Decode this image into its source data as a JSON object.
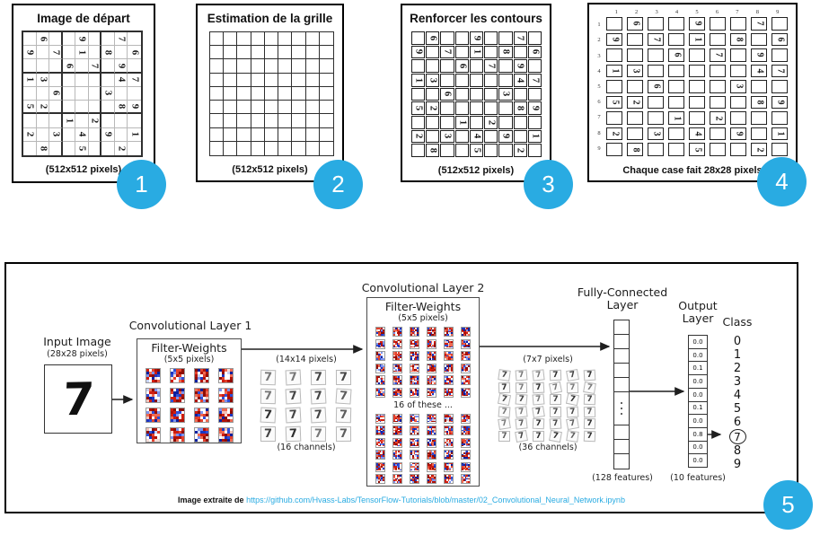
{
  "colors": {
    "accent": "#29abe2",
    "link": "#29abe2"
  },
  "badges": [
    "1",
    "2",
    "3",
    "4",
    "5"
  ],
  "panel1": {
    "title": "Image de départ",
    "caption": "(512x512 pixels)"
  },
  "panel2": {
    "title": "Estimation de la grille",
    "caption": "(512x512 pixels)"
  },
  "panel3": {
    "title": "Renforcer les contours",
    "caption": "(512x512 pixels)"
  },
  "panel4": {
    "caption": "Chaque case fait 28x28 pixels",
    "col_labels": [
      "1",
      "2",
      "3",
      "4",
      "5",
      "6",
      "7",
      "8",
      "9"
    ],
    "row_labels": [
      "1",
      "2",
      "3",
      "4",
      "5",
      "6",
      "7",
      "8",
      "9"
    ]
  },
  "sudoku_grid": [
    [
      "",
      "6",
      "",
      "",
      "9",
      "",
      "",
      "7",
      ""
    ],
    [
      "9",
      "",
      "7",
      "",
      "1",
      "",
      "8",
      "",
      "6"
    ],
    [
      "",
      "",
      "",
      "6",
      "",
      "7",
      "",
      "9",
      ""
    ],
    [
      "1",
      "3",
      "",
      "",
      "",
      "",
      "",
      "4",
      "7"
    ],
    [
      "",
      "",
      "6",
      "",
      "",
      "",
      "3",
      "",
      ""
    ],
    [
      "5",
      "2",
      "",
      "",
      "",
      "",
      "",
      "8",
      "9"
    ],
    [
      "",
      "",
      "",
      "1",
      "",
      "2",
      "",
      "",
      ""
    ],
    [
      "2",
      "",
      "3",
      "",
      "4",
      "",
      "9",
      "",
      "1"
    ],
    [
      "",
      "8",
      "",
      "",
      "5",
      "",
      "",
      "2",
      ""
    ]
  ],
  "cnn": {
    "input_label": "Input Image",
    "input_sublabel": "(28x28 pixels)",
    "input_digit": "7",
    "conv1_title": "Convolutional Layer 1",
    "conv2_title": "Convolutional Layer 2",
    "filter_weights_label": "Filter-Weights",
    "filter_size_label": "(5x5 pixels)",
    "pool1_top_label": "(14x14 pixels)",
    "pool1_bottom_label": "(16 channels)",
    "conv2_mid_label": "16 of these ...",
    "pool2_top_label": "(7x7 pixels)",
    "pool2_bottom_label": "(36 channels)",
    "fc_label_line1": "Fully-Connected",
    "fc_label_line2": "Layer",
    "fc_caption": "(128 features)",
    "output_label_line1": "Output",
    "output_label_line2": "Layer",
    "output_caption": "(10 features)",
    "output_values": [
      "0.0",
      "0.0",
      "0.1",
      "0.0",
      "0.0",
      "0.1",
      "0.0",
      "0.8",
      "0.0",
      "0.0"
    ],
    "class_label": "Class",
    "class_values": [
      "0",
      "1",
      "2",
      "3",
      "4",
      "5",
      "6",
      "7",
      "8",
      "9"
    ],
    "predicted_class": "7",
    "credit_prefix": "Image extraite de ",
    "credit_url": "https://github.com/Hvass-Labs/TensorFlow-Tutorials/blob/master/02_Convolutional_Neural_Network.ipynb"
  }
}
